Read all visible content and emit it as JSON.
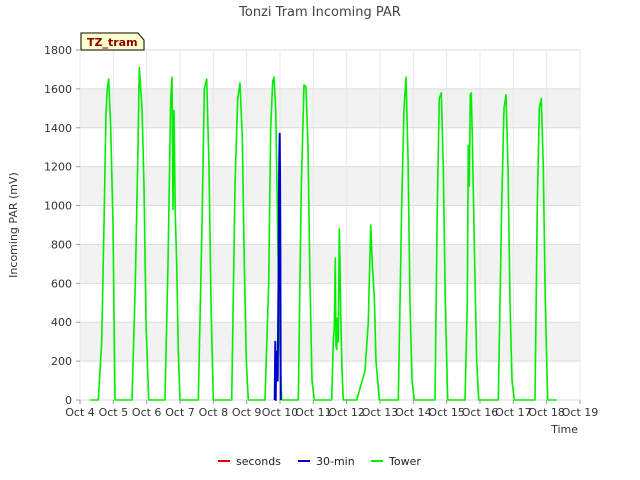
{
  "chart_data": {
    "type": "line",
    "title": "Tonzi Tram Incoming PAR",
    "xlabel": "Time",
    "ylabel": "Incoming PAR (mV)",
    "ylim": [
      0,
      1800
    ],
    "xlim": [
      4,
      19
    ],
    "yticks": [
      0,
      200,
      400,
      600,
      800,
      1000,
      1200,
      1400,
      1600,
      1800
    ],
    "xticks": [
      4,
      5,
      6,
      7,
      8,
      9,
      10,
      11,
      12,
      13,
      14,
      15,
      16,
      17,
      18,
      19
    ],
    "xtick_labels": [
      "Oct 4",
      "Oct 5",
      "Oct 6",
      "Oct 7",
      "Oct 8",
      "Oct 9",
      "Oct 10",
      "Oct 11",
      "Oct 12",
      "Oct 13",
      "Oct 14",
      "Oct 15",
      "Oct 16",
      "Oct 17",
      "Oct 18",
      "Oct 19"
    ],
    "grid": true,
    "site_tag": "TZ_tram",
    "legend_position": "bottom-center",
    "series": [
      {
        "name": "seconds",
        "color": "#dd0000",
        "x": [],
        "y": []
      },
      {
        "name": "30-min",
        "color": "#0000cc",
        "x": [
          9.84,
          9.86,
          9.87,
          9.88,
          9.9,
          9.92,
          9.93,
          9.95,
          9.96,
          9.97,
          9.98,
          9.99,
          10.0,
          10.01,
          10.02
        ],
        "y": [
          0,
          300,
          0,
          200,
          100,
          250,
          100,
          500,
          700,
          1100,
          1250,
          1370,
          1180,
          900,
          0
        ]
      },
      {
        "name": "Tower",
        "color": "#00ee00",
        "x": [
          4.3,
          4.55,
          4.65,
          4.72,
          4.78,
          4.82,
          4.86,
          4.92,
          4.99,
          5.05,
          5.3,
          5.56,
          5.66,
          5.74,
          5.78,
          5.82,
          5.86,
          5.92,
          5.98,
          6.06,
          6.3,
          6.55,
          6.64,
          6.72,
          6.76,
          6.79,
          6.82,
          6.86,
          6.9,
          6.95,
          7.0,
          7.06,
          7.3,
          7.55,
          7.66,
          7.73,
          7.8,
          7.87,
          7.93,
          8.0,
          8.06,
          8.3,
          8.55,
          8.65,
          8.73,
          8.8,
          8.87,
          8.93,
          8.99,
          9.05,
          9.3,
          9.55,
          9.66,
          9.72,
          9.78,
          9.82,
          9.87,
          9.92,
          9.97,
          10.05,
          10.3,
          10.55,
          10.64,
          10.72,
          10.78,
          10.84,
          10.9,
          10.96,
          11.03,
          11.3,
          11.55,
          11.6,
          11.63,
          11.66,
          11.68,
          11.7,
          11.72,
          11.75,
          11.78,
          11.8,
          11.82,
          11.86,
          11.9,
          11.95,
          12.05,
          12.3,
          12.55,
          12.65,
          12.72,
          12.77,
          12.83,
          12.88,
          12.93,
          12.98,
          13.05,
          13.3,
          13.55,
          13.65,
          13.72,
          13.78,
          13.84,
          13.9,
          13.96,
          14.03,
          14.3,
          14.55,
          14.65,
          14.72,
          14.78,
          14.84,
          14.9,
          14.96,
          15.03,
          15.3,
          15.55,
          15.62,
          15.65,
          15.68,
          15.71,
          15.74,
          15.77,
          15.84,
          15.9,
          15.96,
          16.03,
          16.3,
          16.55,
          16.65,
          16.72,
          16.78,
          16.84,
          16.9,
          16.96,
          17.03,
          17.3,
          17.55,
          17.65,
          17.72,
          17.78,
          17.84,
          17.9,
          17.96,
          18.03,
          18.3
        ],
        "y": [
          0,
          0,
          300,
          900,
          1480,
          1600,
          1650,
          1400,
          900,
          0,
          0,
          0,
          600,
          1300,
          1710,
          1600,
          1500,
          1100,
          400,
          0,
          0,
          0,
          700,
          1550,
          1660,
          980,
          1490,
          950,
          700,
          250,
          0,
          0,
          0,
          0,
          900,
          1600,
          1650,
          1200,
          500,
          0,
          0,
          0,
          0,
          1100,
          1550,
          1630,
          1350,
          700,
          200,
          0,
          0,
          0,
          600,
          1400,
          1640,
          1660,
          1500,
          1000,
          400,
          0,
          0,
          0,
          1100,
          1620,
          1610,
          1300,
          600,
          100,
          0,
          0,
          0,
          300,
          380,
          730,
          280,
          260,
          420,
          300,
          880,
          700,
          450,
          150,
          0,
          0,
          0,
          0,
          150,
          400,
          900,
          700,
          530,
          200,
          100,
          0,
          0,
          0,
          0,
          1000,
          1500,
          1660,
          1250,
          500,
          100,
          0,
          0,
          0,
          0,
          1000,
          1550,
          1580,
          1200,
          500,
          0,
          0,
          0,
          500,
          1310,
          1100,
          1570,
          1580,
          1350,
          700,
          200,
          0,
          0,
          0,
          0,
          1000,
          1500,
          1570,
          1200,
          500,
          100,
          0,
          0,
          0,
          0,
          1000,
          1500,
          1550,
          1200,
          500,
          0,
          0
        ]
      }
    ]
  }
}
